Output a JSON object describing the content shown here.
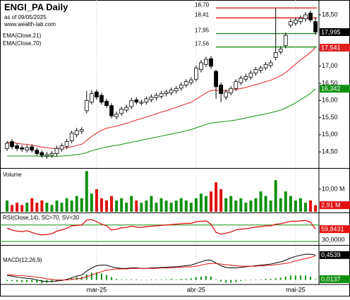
{
  "chart_data": {
    "type": "candlestick",
    "title": "ENGI_PA Daily",
    "subtitle": "as of 09/05/2025",
    "source": "www.wealth-lab.com",
    "open": [
      14.6,
      14.8,
      14.68,
      14.62,
      14.55,
      14.65,
      14.55,
      14.48,
      14.38,
      14.4,
      14.45,
      14.58,
      14.66,
      14.82,
      15.0,
      15.1,
      15.7,
      15.95,
      16.25,
      16.15,
      15.98,
      15.85,
      15.52,
      15.62,
      15.72,
      15.82,
      16.02,
      15.92,
      15.95,
      16.02,
      16.08,
      16.12,
      16.2,
      16.22,
      16.28,
      16.36,
      16.45,
      16.52,
      16.62,
      16.9,
      17.05,
      17.22,
      16.85,
      16.45,
      16.1,
      16.22,
      16.35,
      16.52,
      16.62,
      16.68,
      16.8,
      16.88,
      16.95,
      17.02,
      17.25,
      17.42,
      17.6,
      18.2,
      18.25,
      18.3,
      18.38,
      18.55,
      18.3
    ],
    "high": [
      14.82,
      14.88,
      14.75,
      14.7,
      14.7,
      14.72,
      14.62,
      14.55,
      14.5,
      14.52,
      14.68,
      14.75,
      14.88,
      15.12,
      15.2,
      15.22,
      16.28,
      16.3,
      16.32,
      16.22,
      16.05,
      15.92,
      15.68,
      15.82,
      15.88,
      16.08,
      16.1,
      16.02,
      16.12,
      16.18,
      16.22,
      16.28,
      16.32,
      16.38,
      16.42,
      16.52,
      16.62,
      16.68,
      17.02,
      17.18,
      17.28,
      17.3,
      16.9,
      16.52,
      16.32,
      16.42,
      16.62,
      16.72,
      16.78,
      16.88,
      16.98,
      17.02,
      17.12,
      17.18,
      18.7,
      17.58,
      17.98,
      18.38,
      18.42,
      18.48,
      18.58,
      18.62,
      18.41
    ],
    "low": [
      14.53,
      14.58,
      14.52,
      14.5,
      14.48,
      14.48,
      14.38,
      14.33,
      14.3,
      14.33,
      14.38,
      14.5,
      14.58,
      14.75,
      14.92,
      15.02,
      15.62,
      15.88,
      16.02,
      15.88,
      15.78,
      15.48,
      15.45,
      15.55,
      15.65,
      15.75,
      15.88,
      15.85,
      15.88,
      15.95,
      16.0,
      16.05,
      16.12,
      16.15,
      16.2,
      16.28,
      16.38,
      16.45,
      16.55,
      16.82,
      16.98,
      16.92,
      16.05,
      15.95,
      16.02,
      16.15,
      16.28,
      16.45,
      16.55,
      16.6,
      16.72,
      16.8,
      16.88,
      16.95,
      17.18,
      17.35,
      17.52,
      18.12,
      18.18,
      18.22,
      18.3,
      18.28,
      17.92
    ],
    "close": [
      14.75,
      14.65,
      14.6,
      14.58,
      14.62,
      14.55,
      14.45,
      14.4,
      14.42,
      14.45,
      14.6,
      14.68,
      14.8,
      15.05,
      15.12,
      15.15,
      16.0,
      16.2,
      16.1,
      15.95,
      15.85,
      15.55,
      15.6,
      15.75,
      15.8,
      16.0,
      15.95,
      15.95,
      16.05,
      16.1,
      16.15,
      16.2,
      16.25,
      16.3,
      16.35,
      16.45,
      16.55,
      16.6,
      16.95,
      17.1,
      17.2,
      17.0,
      16.4,
      16.2,
      16.25,
      16.35,
      16.55,
      16.65,
      16.7,
      16.8,
      16.9,
      16.95,
      17.05,
      17.1,
      17.4,
      17.5,
      17.9,
      18.3,
      18.35,
      18.4,
      18.5,
      18.35,
      17.995
    ],
    "last_label": "17,995",
    "ylim": [
      14.05,
      18.89
    ],
    "yticks": [
      {
        "value": 18.5,
        "label": "18,50"
      },
      {
        "value": 17.5,
        "label": "17,50"
      },
      {
        "value": 17,
        "label": "17,00"
      },
      {
        "value": 16.5,
        "label": "16,50"
      },
      {
        "value": 16,
        "label": "16,00"
      },
      {
        "value": 15.5,
        "label": "15,50"
      },
      {
        "value": 15,
        "label": "15,00"
      },
      {
        "value": 14.5,
        "label": "14,50"
      }
    ],
    "xticks": [
      {
        "value": 18,
        "label": "mar-25"
      },
      {
        "value": 38,
        "label": "abr-25"
      },
      {
        "value": 58,
        "label": "mai-25"
      }
    ],
    "levels": [
      {
        "value": 18.7,
        "label": "18,70",
        "color": "#e01010"
      },
      {
        "value": 18.41,
        "label": "18,41",
        "color": "#e01010"
      },
      {
        "value": 17.95,
        "label": "17,95",
        "color": "#108a10"
      },
      {
        "value": 17.56,
        "label": "17,56",
        "color": "#108a10"
      }
    ],
    "overlays": [
      {
        "name": "EMA(Close,21)",
        "color": "#e02020",
        "last_label": "17,541",
        "values": [
          14.78,
          14.77,
          14.75,
          14.73,
          14.72,
          14.7,
          14.67,
          14.64,
          14.62,
          14.6,
          14.6,
          14.61,
          14.62,
          14.65,
          14.69,
          14.72,
          14.83,
          14.95,
          15.05,
          15.13,
          15.19,
          15.22,
          15.25,
          15.29,
          15.33,
          15.38,
          15.43,
          15.47,
          15.52,
          15.56,
          15.61,
          15.66,
          15.7,
          15.75,
          15.8,
          15.85,
          15.9,
          15.95,
          16.04,
          16.13,
          16.22,
          16.29,
          16.3,
          16.29,
          16.29,
          16.3,
          16.32,
          16.35,
          16.38,
          16.42,
          16.46,
          16.5,
          16.55,
          16.59,
          16.66,
          16.72,
          16.81,
          16.94,
          17.06,
          17.18,
          17.29,
          17.4,
          17.541
        ]
      },
      {
        "name": "EMA(Close,70)",
        "color": "#109010",
        "last_label": "16,342",
        "values": [
          14.38,
          14.38,
          14.38,
          14.38,
          14.38,
          14.38,
          14.38,
          14.37,
          14.37,
          14.37,
          14.37,
          14.38,
          14.39,
          14.4,
          14.42,
          14.44,
          14.48,
          14.53,
          14.57,
          14.61,
          14.64,
          14.67,
          14.69,
          14.72,
          14.75,
          14.78,
          14.81,
          14.84,
          14.87,
          14.9,
          14.93,
          14.96,
          14.99,
          15.02,
          15.05,
          15.08,
          15.12,
          15.15,
          15.2,
          15.25,
          15.3,
          15.34,
          15.36,
          15.37,
          15.39,
          15.41,
          15.43,
          15.46,
          15.49,
          15.52,
          15.55,
          15.58,
          15.61,
          15.64,
          15.68,
          15.72,
          15.78,
          15.85,
          15.93,
          16.02,
          16.11,
          16.21,
          16.342
        ]
      }
    ],
    "volume": {
      "title": "Volume",
      "ylim": [
        0,
        18.75
      ],
      "yticks": [
        {
          "value": 10,
          "label": "10,00 M"
        }
      ],
      "last_label": "2,91 M",
      "values": [
        5,
        3,
        4,
        3,
        4,
        6,
        4,
        5,
        4,
        3,
        5,
        4,
        6,
        5,
        7,
        6,
        18,
        8,
        10,
        6,
        5,
        7,
        5,
        6,
        4,
        7,
        5,
        4,
        5,
        7,
        4,
        6,
        5,
        4,
        5,
        6,
        5,
        4,
        6,
        8,
        7,
        9,
        13,
        10,
        6,
        7,
        5,
        6,
        4,
        5,
        6,
        9,
        7,
        5,
        14,
        6,
        9,
        7,
        5,
        6,
        4,
        5,
        2.91
      ]
    },
    "rsi": {
      "title": "RSI(Close,14), SC>70, SV<30",
      "color": "#e01010",
      "ylim": [
        25,
        97
      ],
      "levels": [
        70,
        30
      ],
      "yticks": [
        {
          "value": 30,
          "label": "30,0000"
        }
      ],
      "last_label": "59,8431",
      "values": [
        62,
        58,
        55,
        54,
        56,
        52,
        48,
        46,
        47,
        49,
        55,
        58,
        62,
        68,
        69,
        70,
        82,
        83,
        78,
        72,
        68,
        58,
        60,
        63,
        64,
        67,
        65,
        64,
        66,
        67,
        68,
        69,
        70,
        71,
        72,
        73,
        74,
        74,
        78,
        79,
        80,
        72,
        52,
        48,
        50,
        53,
        58,
        60,
        61,
        63,
        65,
        66,
        68,
        68,
        72,
        73,
        76,
        79,
        79,
        80,
        81,
        77,
        59.8431
      ]
    },
    "macd": {
      "title": "MACD(12,26,9)",
      "ylim": [
        -0.07,
        0.6
      ],
      "series": [
        {
          "name": "MACD",
          "color": "#000000",
          "last_label": "0,4539",
          "values": [
            0.08,
            0.07,
            0.05,
            0.04,
            0.03,
            0.02,
            0.0,
            -0.02,
            -0.03,
            -0.03,
            -0.02,
            -0.01,
            0.01,
            0.04,
            0.07,
            0.09,
            0.16,
            0.22,
            0.26,
            0.27,
            0.27,
            0.24,
            0.22,
            0.21,
            0.21,
            0.22,
            0.22,
            0.21,
            0.21,
            0.22,
            0.22,
            0.23,
            0.23,
            0.24,
            0.24,
            0.25,
            0.26,
            0.27,
            0.3,
            0.33,
            0.36,
            0.36,
            0.31,
            0.26,
            0.23,
            0.22,
            0.22,
            0.23,
            0.24,
            0.25,
            0.26,
            0.27,
            0.28,
            0.29,
            0.31,
            0.33,
            0.36,
            0.4,
            0.43,
            0.45,
            0.47,
            0.47,
            0.4539
          ]
        },
        {
          "name": "Signal",
          "color": "#e01010",
          "values": [
            0.1,
            0.09,
            0.08,
            0.08,
            0.07,
            0.06,
            0.05,
            0.04,
            0.02,
            0.01,
            0.0,
            0.0,
            0.0,
            0.01,
            0.02,
            0.03,
            0.06,
            0.09,
            0.12,
            0.15,
            0.18,
            0.19,
            0.2,
            0.2,
            0.2,
            0.21,
            0.21,
            0.21,
            0.21,
            0.21,
            0.21,
            0.22,
            0.22,
            0.22,
            0.23,
            0.23,
            0.24,
            0.24,
            0.25,
            0.27,
            0.29,
            0.3,
            0.3,
            0.29,
            0.28,
            0.27,
            0.26,
            0.25,
            0.25,
            0.25,
            0.25,
            0.26,
            0.26,
            0.27,
            0.28,
            0.29,
            0.3,
            0.32,
            0.35,
            0.37,
            0.39,
            0.41,
            0.44
          ]
        }
      ],
      "histogram": {
        "color": "#109010",
        "last_label": "0,0137",
        "values": [
          -0.02,
          -0.02,
          -0.03,
          -0.04,
          -0.04,
          -0.04,
          -0.05,
          -0.06,
          -0.05,
          -0.04,
          -0.02,
          -0.01,
          0.01,
          0.03,
          0.05,
          0.06,
          0.1,
          0.13,
          0.14,
          0.12,
          0.09,
          0.05,
          0.02,
          0.01,
          0.01,
          0.01,
          0.01,
          0.0,
          0.0,
          0.01,
          0.01,
          0.01,
          0.01,
          0.02,
          0.01,
          0.02,
          0.02,
          0.03,
          0.05,
          0.06,
          0.07,
          0.06,
          0.01,
          -0.03,
          -0.05,
          -0.05,
          -0.04,
          -0.02,
          -0.01,
          0.0,
          0.01,
          0.01,
          0.02,
          0.02,
          0.03,
          0.04,
          0.06,
          0.08,
          0.08,
          0.08,
          0.08,
          0.06,
          0.0137
        ]
      }
    }
  }
}
